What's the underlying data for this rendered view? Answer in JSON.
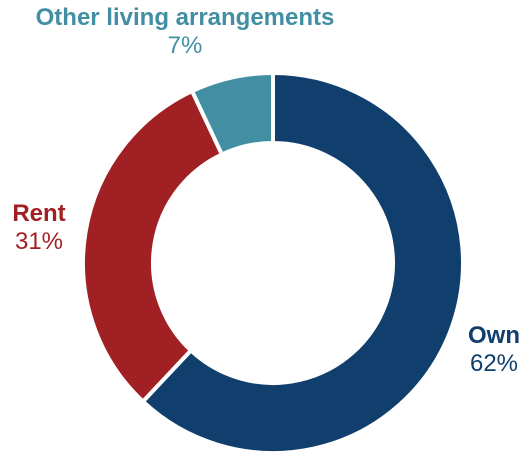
{
  "chart_data": {
    "type": "pie",
    "style": "donut",
    "title": "",
    "slices": [
      {
        "label": "Own",
        "value": 62,
        "display": "62%",
        "color": "#103f6d"
      },
      {
        "label": "Rent",
        "value": 31,
        "display": "31%",
        "color": "#a12024"
      },
      {
        "label": "Other living arrangements",
        "value": 7,
        "display": "7%",
        "color": "#428fa3"
      }
    ]
  }
}
